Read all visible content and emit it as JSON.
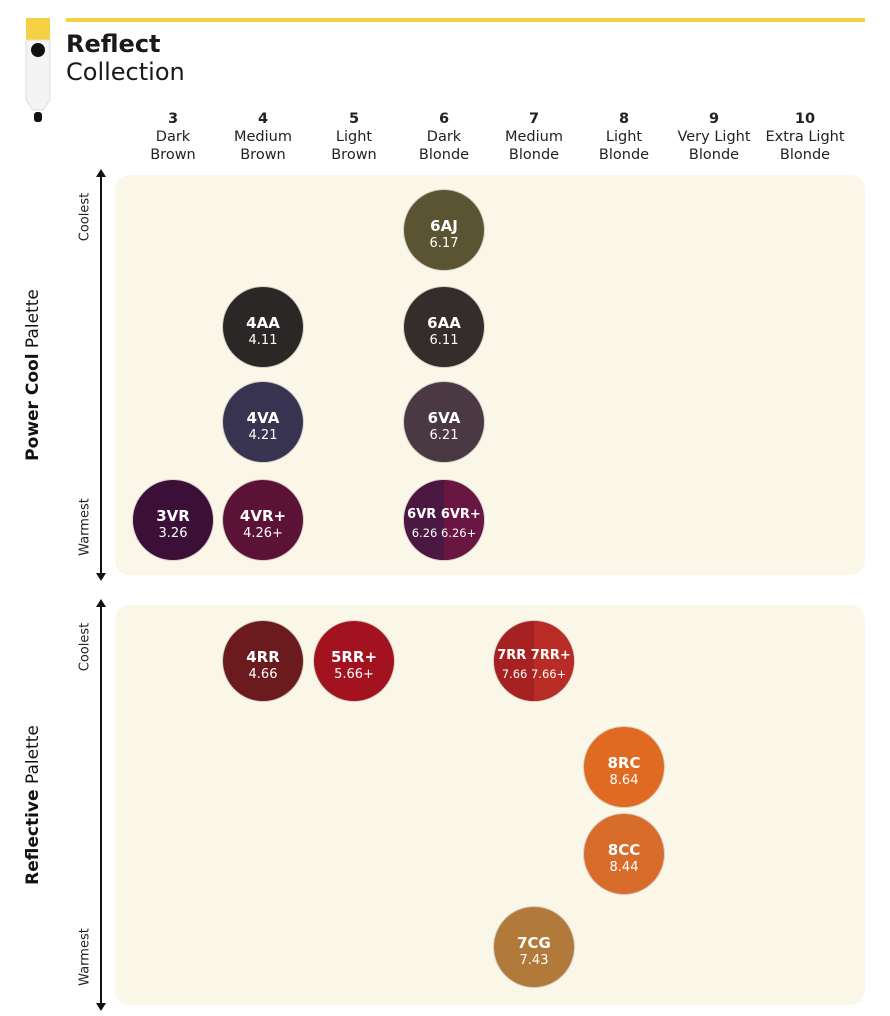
{
  "header": {
    "title": "Reflect",
    "subtitle": "Collection",
    "accent": "#f6d143"
  },
  "columns": [
    {
      "level": "3",
      "name_line1": "Dark",
      "name_line2": "Brown"
    },
    {
      "level": "4",
      "name_line1": "Medium",
      "name_line2": "Brown"
    },
    {
      "level": "5",
      "name_line1": "Light",
      "name_line2": "Brown"
    },
    {
      "level": "6",
      "name_line1": "Dark",
      "name_line2": "Blonde"
    },
    {
      "level": "7",
      "name_line1": "Medium",
      "name_line2": "Blonde"
    },
    {
      "level": "8",
      "name_line1": "Light",
      "name_line2": "Blonde"
    },
    {
      "level": "9",
      "name_line1": "Very Light",
      "name_line2": "Blonde"
    },
    {
      "level": "10",
      "name_line1": "Extra Light",
      "name_line2": "Blonde"
    }
  ],
  "palettes": [
    {
      "name_bold": "Power Cool",
      "name_rest": " Palette",
      "coolest": "Coolest",
      "warmest": "Warmest",
      "swatches": [
        {
          "code": "6AJ",
          "value": "6.17",
          "level": "6",
          "colors": [
            "#5b5433"
          ]
        },
        {
          "code": "4AA",
          "value": "4.11",
          "level": "4",
          "colors": [
            "#2c2727"
          ]
        },
        {
          "code": "6AA",
          "value": "6.11",
          "level": "6",
          "colors": [
            "#342d2b"
          ]
        },
        {
          "code": "4VA",
          "value": "4.21",
          "level": "4",
          "colors": [
            "#383351"
          ]
        },
        {
          "code": "6VA",
          "value": "6.21",
          "level": "6",
          "colors": [
            "#4a3842"
          ]
        },
        {
          "code": "3VR",
          "value": "3.26",
          "level": "3",
          "colors": [
            "#3b0f37"
          ]
        },
        {
          "code": "4VR+",
          "value": "4.26+",
          "level": "4",
          "colors": [
            "#5c1237"
          ]
        },
        {
          "code": "6VR 6VR+",
          "value": "6.26 6.26+",
          "level": "6",
          "colors": [
            "#4a1843",
            "#6a1642"
          ]
        }
      ]
    },
    {
      "name_bold": "Reflective",
      "name_rest": " Palette",
      "coolest": "Coolest",
      "warmest": "Warmest",
      "swatches": [
        {
          "code": "4RR",
          "value": "4.66",
          "level": "4",
          "colors": [
            "#6b1a1e"
          ]
        },
        {
          "code": "5RR+",
          "value": "5.66+",
          "level": "5",
          "colors": [
            "#a3121f"
          ]
        },
        {
          "code": "7RR 7RR+",
          "value": "7.66 7.66+",
          "level": "7",
          "colors": [
            "#a62222",
            "#b92b25"
          ]
        },
        {
          "code": "8RC",
          "value": "8.64",
          "level": "8",
          "colors": [
            "#e06a22"
          ]
        },
        {
          "code": "8CC",
          "value": "8.44",
          "level": "8",
          "colors": [
            "#d86c2a"
          ]
        },
        {
          "code": "7CG",
          "value": "7.43",
          "level": "7",
          "colors": [
            "#b27a3a"
          ]
        }
      ]
    }
  ]
}
